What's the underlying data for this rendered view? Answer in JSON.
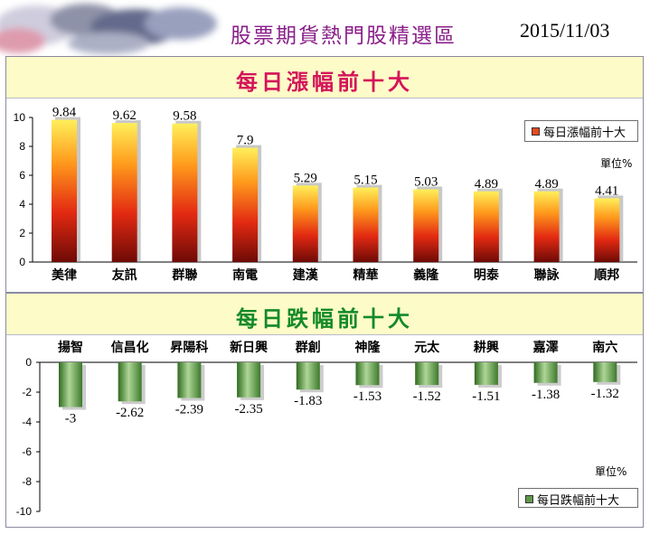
{
  "header": {
    "title": "股票期貨熱門股精選區",
    "date": "2015/11/03"
  },
  "chart_data": [
    {
      "type": "bar",
      "title": "每日漲幅前十大",
      "legend": "每日漲幅前十大",
      "legend_position": "top-right",
      "unit": "單位%",
      "categories": [
        "美律",
        "友訊",
        "群聯",
        "南電",
        "建漢",
        "精華",
        "義隆",
        "明泰",
        "聯詠",
        "順邦"
      ],
      "values": [
        9.84,
        9.62,
        9.58,
        7.9,
        5.29,
        5.15,
        5.03,
        4.89,
        4.89,
        4.41
      ],
      "value_labels": [
        "9.84",
        "9.62",
        "9.58",
        "7.9",
        "5.29",
        "5.15",
        "5.03",
        "4.89",
        "4.89",
        "4.41"
      ],
      "yticks": [
        "0",
        "2",
        "4",
        "6",
        "8",
        "10"
      ],
      "ylim": [
        0,
        10
      ],
      "grid": false,
      "color": "#e8491d"
    },
    {
      "type": "bar",
      "title": "每日跌幅前十大",
      "legend": "每日跌幅前十大",
      "legend_position": "bottom-right",
      "unit": "單位%",
      "categories": [
        "揚智",
        "信昌化",
        "昇陽科",
        "新日興",
        "群創",
        "神隆",
        "元太",
        "耕興",
        "嘉澤",
        "南六"
      ],
      "values": [
        -3,
        -2.62,
        -2.39,
        -2.35,
        -1.83,
        -1.53,
        -1.52,
        -1.51,
        -1.38,
        -1.32
      ],
      "value_labels": [
        "-3",
        "-2.62",
        "-2.39",
        "-2.35",
        "-1.83",
        "-1.53",
        "-1.52",
        "-1.51",
        "-1.38",
        "-1.32"
      ],
      "yticks": [
        "0",
        "-2",
        "-4",
        "-6",
        "-8",
        "-10"
      ],
      "ylim": [
        -10,
        0
      ],
      "grid": false,
      "color": "#5f9a4a"
    }
  ]
}
